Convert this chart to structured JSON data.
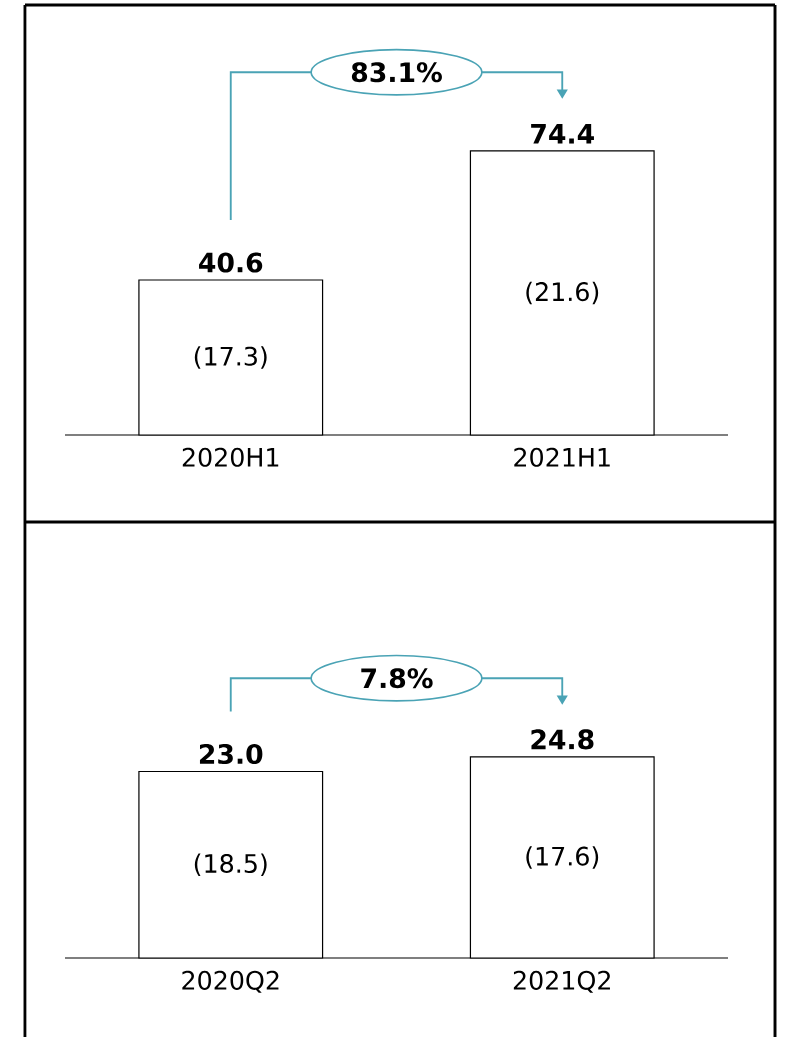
{
  "chart_data": [
    {
      "type": "bar",
      "categories": [
        "2020H1",
        "2021H1"
      ],
      "values": [
        40.6,
        74.4
      ],
      "color": "#ffffff",
      "value_labels": [
        "40.6",
        "74.4"
      ],
      "annotations": [
        "83.1%",
        "(17.3)",
        "(21.6)"
      ]
    },
    {
      "type": "bar",
      "categories": [
        "2020Q2",
        "2021Q2"
      ],
      "values": [
        23.0,
        24.8
      ],
      "color": "#ffffff",
      "value_labels": [
        "23.0",
        "24.8"
      ],
      "annotations": [
        "7.8%",
        "(18.5)",
        "(17.6)"
      ]
    }
  ]
}
